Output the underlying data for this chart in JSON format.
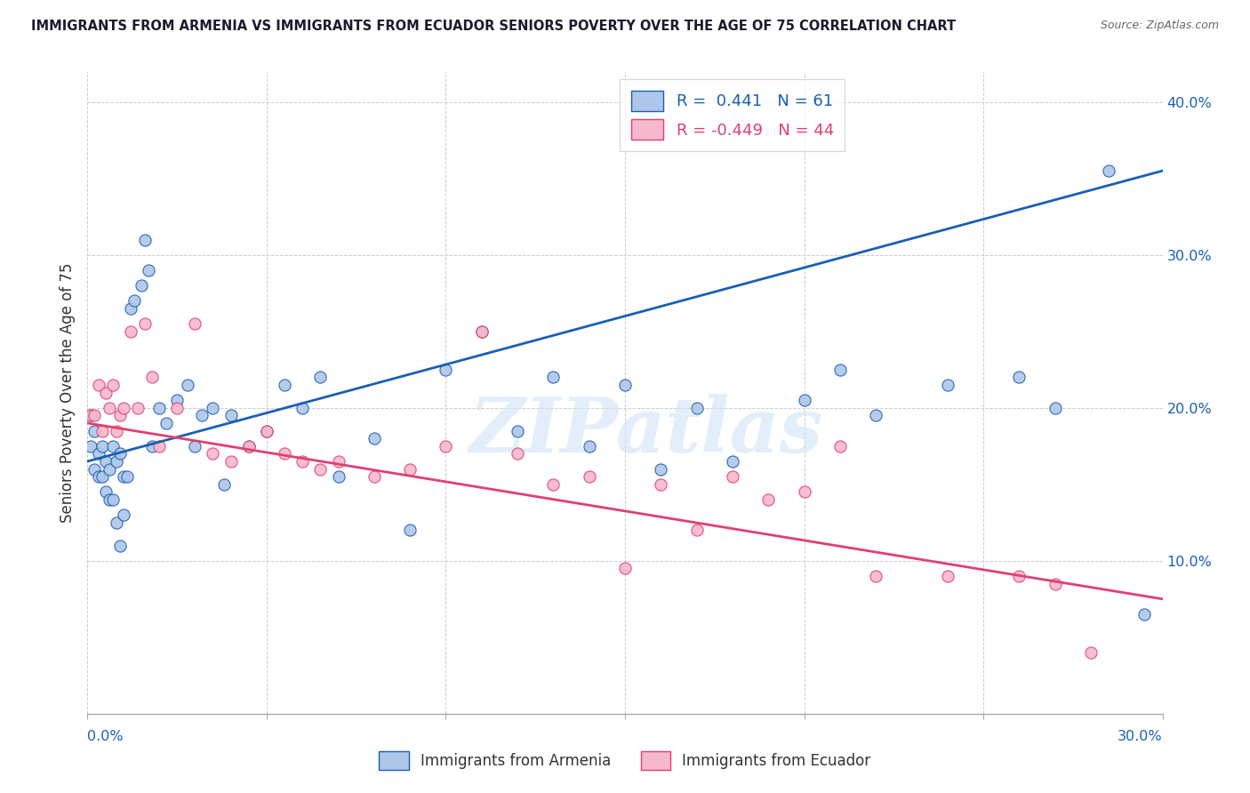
{
  "title": "IMMIGRANTS FROM ARMENIA VS IMMIGRANTS FROM ECUADOR SENIORS POVERTY OVER THE AGE OF 75 CORRELATION CHART",
  "source": "Source: ZipAtlas.com",
  "ylabel": "Seniors Poverty Over the Age of 75",
  "xlim": [
    0.0,
    0.3
  ],
  "ylim": [
    0.0,
    0.42
  ],
  "legend_armenia": "Immigrants from Armenia",
  "legend_ecuador": "Immigrants from Ecuador",
  "R_armenia": 0.441,
  "N_armenia": 61,
  "R_ecuador": -0.449,
  "N_ecuador": 44,
  "color_armenia": "#aec6e8",
  "color_ecuador": "#f5b8cc",
  "line_color_armenia": "#1a5fb4",
  "line_color_ecuador": "#e04070",
  "watermark_text": "ZIPatlas",
  "armenia_x": [
    0.001,
    0.001,
    0.002,
    0.002,
    0.003,
    0.003,
    0.004,
    0.004,
    0.005,
    0.005,
    0.006,
    0.006,
    0.007,
    0.007,
    0.008,
    0.008,
    0.009,
    0.009,
    0.01,
    0.01,
    0.011,
    0.012,
    0.013,
    0.015,
    0.016,
    0.017,
    0.018,
    0.02,
    0.022,
    0.025,
    0.028,
    0.03,
    0.032,
    0.035,
    0.038,
    0.04,
    0.045,
    0.05,
    0.055,
    0.06,
    0.065,
    0.07,
    0.08,
    0.09,
    0.1,
    0.11,
    0.12,
    0.13,
    0.14,
    0.15,
    0.16,
    0.17,
    0.18,
    0.2,
    0.21,
    0.22,
    0.24,
    0.26,
    0.27,
    0.285,
    0.295
  ],
  "armenia_y": [
    0.195,
    0.175,
    0.185,
    0.16,
    0.17,
    0.155,
    0.175,
    0.155,
    0.165,
    0.145,
    0.16,
    0.14,
    0.175,
    0.14,
    0.165,
    0.125,
    0.17,
    0.11,
    0.155,
    0.13,
    0.155,
    0.265,
    0.27,
    0.28,
    0.31,
    0.29,
    0.175,
    0.2,
    0.19,
    0.205,
    0.215,
    0.175,
    0.195,
    0.2,
    0.15,
    0.195,
    0.175,
    0.185,
    0.215,
    0.2,
    0.22,
    0.155,
    0.18,
    0.12,
    0.225,
    0.25,
    0.185,
    0.22,
    0.175,
    0.215,
    0.16,
    0.2,
    0.165,
    0.205,
    0.225,
    0.195,
    0.215,
    0.22,
    0.2,
    0.355,
    0.065
  ],
  "ecuador_x": [
    0.001,
    0.002,
    0.003,
    0.004,
    0.005,
    0.006,
    0.007,
    0.008,
    0.009,
    0.01,
    0.012,
    0.014,
    0.016,
    0.018,
    0.02,
    0.025,
    0.03,
    0.035,
    0.04,
    0.045,
    0.05,
    0.055,
    0.06,
    0.065,
    0.07,
    0.08,
    0.09,
    0.1,
    0.11,
    0.12,
    0.13,
    0.14,
    0.15,
    0.16,
    0.17,
    0.18,
    0.19,
    0.2,
    0.21,
    0.22,
    0.24,
    0.26,
    0.27,
    0.28
  ],
  "ecuador_y": [
    0.195,
    0.195,
    0.215,
    0.185,
    0.21,
    0.2,
    0.215,
    0.185,
    0.195,
    0.2,
    0.25,
    0.2,
    0.255,
    0.22,
    0.175,
    0.2,
    0.255,
    0.17,
    0.165,
    0.175,
    0.185,
    0.17,
    0.165,
    0.16,
    0.165,
    0.155,
    0.16,
    0.175,
    0.25,
    0.17,
    0.15,
    0.155,
    0.095,
    0.15,
    0.12,
    0.155,
    0.14,
    0.145,
    0.175,
    0.09,
    0.09,
    0.09,
    0.085,
    0.04
  ],
  "line_armenia_x0": 0.0,
  "line_armenia_y0": 0.165,
  "line_armenia_x1": 0.3,
  "line_armenia_y1": 0.355,
  "line_ecuador_x0": 0.0,
  "line_ecuador_y0": 0.19,
  "line_ecuador_x1": 0.3,
  "line_ecuador_y1": 0.075
}
